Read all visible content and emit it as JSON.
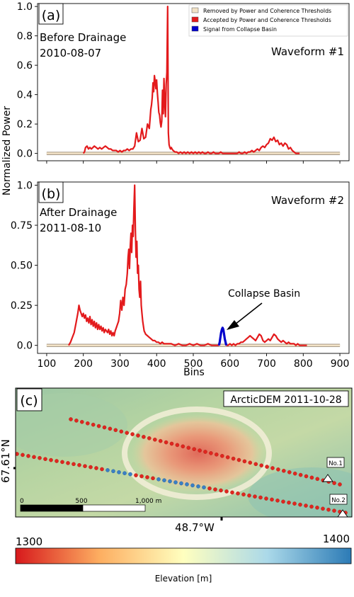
{
  "figure": {
    "ylabel": "Normalized Power",
    "xlabel": "Bins"
  },
  "chart_data": [
    {
      "panel": "(a)",
      "type": "line",
      "title_lines": [
        "Before Drainage",
        "2010-08-07"
      ],
      "waveform_label": "Waveform #1",
      "xlim": [
        75,
        925
      ],
      "ylim": [
        -0.05,
        1.02
      ],
      "yticks": [
        "0.0",
        "0.2",
        "0.4",
        "0.6",
        "0.8",
        "1.0"
      ],
      "ytick_values": [
        0,
        0.2,
        0.4,
        0.6,
        0.8,
        1.0
      ],
      "legend": {
        "placement": "top-right",
        "entries": [
          {
            "label": "Removed by Power and Coherence Thresholds",
            "color": "#f2e2c6"
          },
          {
            "label": "Accepted by Power and Coherence Thresholds",
            "color": "#e31a1c"
          },
          {
            "label": "Signal from Collapse Basin",
            "color": "#0000cc"
          }
        ]
      },
      "series": [
        {
          "role": "removed",
          "color": "#f2e2c6",
          "x": [
            100,
            200,
            430,
            570,
            790,
            900
          ],
          "y": [
            0,
            0,
            0,
            0,
            0,
            0
          ]
        },
        {
          "role": "accepted",
          "color": "#e31a1c",
          "x": [
            200,
            203,
            206,
            210,
            214,
            218,
            222,
            226,
            230,
            235,
            240,
            245,
            250,
            255,
            260,
            265,
            270,
            275,
            280,
            285,
            290,
            295,
            300,
            305,
            310,
            315,
            320,
            325,
            330,
            335,
            340,
            345,
            350,
            355,
            360,
            365,
            370,
            375,
            380,
            384,
            386,
            388,
            390,
            392,
            394,
            396,
            398,
            400,
            402,
            404,
            406,
            408,
            410,
            412,
            414,
            416,
            418,
            420,
            422,
            424,
            426,
            428,
            430,
            432,
            434,
            436,
            438,
            440,
            442,
            445,
            450,
            455,
            460,
            465,
            470,
            475,
            480,
            485,
            490,
            495,
            500,
            505,
            510,
            515,
            520,
            525,
            530,
            535,
            540,
            545,
            550,
            555,
            560,
            565,
            570,
            575,
            580,
            585,
            590,
            595,
            600,
            605,
            610,
            615,
            620,
            625,
            630,
            635,
            640,
            645,
            650,
            655,
            660,
            665,
            670,
            675,
            680,
            685,
            690,
            695,
            700,
            705,
            710,
            715,
            720,
            725,
            730,
            735,
            740,
            745,
            750,
            755,
            760,
            765,
            770,
            775,
            780,
            785,
            790
          ],
          "y": [
            0.0,
            0.01,
            0.04,
            0.05,
            0.03,
            0.04,
            0.03,
            0.04,
            0.05,
            0.04,
            0.03,
            0.04,
            0.03,
            0.04,
            0.05,
            0.04,
            0.03,
            0.03,
            0.02,
            0.02,
            0.02,
            0.01,
            0.02,
            0.01,
            0.02,
            0.02,
            0.03,
            0.02,
            0.03,
            0.03,
            0.05,
            0.14,
            0.08,
            0.09,
            0.17,
            0.1,
            0.11,
            0.2,
            0.17,
            0.3,
            0.33,
            0.38,
            0.48,
            0.42,
            0.53,
            0.49,
            0.44,
            0.5,
            0.41,
            0.35,
            0.28,
            0.26,
            0.21,
            0.18,
            0.22,
            0.43,
            0.27,
            0.51,
            0.35,
            0.25,
            0.47,
            0.55,
            1.0,
            0.14,
            0.06,
            0.04,
            0.03,
            0.04,
            0.03,
            0.02,
            0.01,
            0.01,
            0.0,
            0.01,
            0.0,
            0.01,
            0.0,
            0.01,
            0.0,
            0.01,
            0.0,
            0.01,
            0.0,
            0.01,
            0.0,
            0.01,
            0.0,
            0.0,
            0.01,
            0.0,
            0.0,
            0.01,
            0.0,
            0.0,
            0.0,
            0.01,
            0.0,
            0.0,
            0.0,
            0.0,
            0.0,
            0.0,
            0.0,
            0.0,
            0.0,
            0.01,
            0.0,
            0.0,
            0.01,
            0.0,
            0.01,
            0.01,
            0.02,
            0.01,
            0.02,
            0.03,
            0.02,
            0.04,
            0.05,
            0.04,
            0.06,
            0.07,
            0.1,
            0.09,
            0.11,
            0.08,
            0.09,
            0.06,
            0.07,
            0.05,
            0.07,
            0.06,
            0.03,
            0.04,
            0.02,
            0.01,
            0.0,
            0.0,
            0.0
          ]
        }
      ]
    },
    {
      "panel": "(b)",
      "type": "line",
      "title_lines": [
        "After Drainage",
        "2011-08-10"
      ],
      "waveform_label": "Waveform #2",
      "annotation": "Collapse Basin",
      "xlim": [
        75,
        925
      ],
      "ylim": [
        -0.05,
        1.02
      ],
      "xticks": [
        "100",
        "200",
        "300",
        "400",
        "500",
        "600",
        "700",
        "800",
        "900"
      ],
      "xtick_values": [
        100,
        200,
        300,
        400,
        500,
        600,
        700,
        800,
        900
      ],
      "yticks": [
        "0.0",
        "0.25",
        "0.50",
        "0.75",
        "1.0"
      ],
      "ytick_values": [
        0,
        0.25,
        0.5,
        0.75,
        1.0
      ],
      "series": [
        {
          "role": "removed",
          "color": "#f2e2c6",
          "x": [
            100,
            160,
            460,
            570,
            810,
            900
          ],
          "y": [
            0,
            0,
            0,
            0,
            0,
            0
          ]
        },
        {
          "role": "accepted",
          "color": "#e31a1c",
          "x": [
            160,
            165,
            170,
            175,
            180,
            185,
            188,
            191,
            194,
            197,
            200,
            203,
            206,
            209,
            212,
            215,
            218,
            221,
            224,
            227,
            230,
            233,
            236,
            239,
            242,
            245,
            248,
            251,
            254,
            257,
            260,
            263,
            266,
            269,
            272,
            275,
            278,
            281,
            284,
            287,
            290,
            293,
            296,
            299,
            302,
            305,
            308,
            311,
            314,
            317,
            320,
            322,
            324,
            326,
            328,
            330,
            332,
            334,
            336,
            338,
            340,
            342,
            344,
            346,
            348,
            350,
            352,
            354,
            356,
            358,
            360,
            362,
            364,
            366,
            368,
            370,
            375,
            380,
            385,
            390,
            395,
            400,
            405,
            410,
            415,
            420,
            430,
            440,
            450,
            460,
            470,
            480,
            490,
            500,
            510,
            520,
            530,
            540,
            550,
            560,
            565,
            570
          ],
          "y": [
            0.0,
            0.02,
            0.05,
            0.08,
            0.14,
            0.2,
            0.25,
            0.22,
            0.2,
            0.18,
            0.2,
            0.17,
            0.19,
            0.15,
            0.17,
            0.14,
            0.18,
            0.13,
            0.16,
            0.12,
            0.15,
            0.11,
            0.14,
            0.1,
            0.13,
            0.1,
            0.12,
            0.09,
            0.11,
            0.08,
            0.1,
            0.09,
            0.08,
            0.1,
            0.07,
            0.09,
            0.06,
            0.08,
            0.06,
            0.09,
            0.11,
            0.13,
            0.15,
            0.2,
            0.28,
            0.22,
            0.3,
            0.25,
            0.35,
            0.38,
            0.45,
            0.55,
            0.6,
            0.48,
            0.62,
            0.7,
            0.58,
            0.75,
            0.68,
            0.85,
            1.0,
            0.72,
            0.55,
            0.65,
            0.45,
            0.5,
            0.35,
            0.3,
            0.4,
            0.25,
            0.2,
            0.15,
            0.12,
            0.09,
            0.08,
            0.07,
            0.06,
            0.05,
            0.04,
            0.03,
            0.03,
            0.02,
            0.02,
            0.01,
            0.02,
            0.01,
            0.01,
            0.01,
            0.0,
            0.01,
            0.0,
            0.0,
            0.01,
            0.0,
            0.01,
            0.0,
            0.0,
            0.01,
            0.0,
            0.0,
            0.0,
            0.0
          ]
        },
        {
          "role": "accepted",
          "color": "#e31a1c",
          "x": [
            590,
            595,
            600,
            605,
            610,
            615,
            620,
            625,
            630,
            635,
            640,
            645,
            650,
            655,
            660,
            665,
            670,
            675,
            680,
            685,
            690,
            695,
            700,
            705,
            710,
            715,
            720,
            725,
            730,
            735,
            740,
            745,
            750,
            755,
            760,
            765,
            770,
            775,
            780,
            785,
            790,
            795,
            800,
            805,
            810
          ],
          "y": [
            0.0,
            0.0,
            0.01,
            0.0,
            0.01,
            0.0,
            0.01,
            0.01,
            0.02,
            0.02,
            0.03,
            0.04,
            0.05,
            0.06,
            0.05,
            0.04,
            0.03,
            0.05,
            0.07,
            0.06,
            0.03,
            0.02,
            0.03,
            0.04,
            0.03,
            0.05,
            0.07,
            0.06,
            0.04,
            0.03,
            0.02,
            0.03,
            0.02,
            0.01,
            0.02,
            0.01,
            0.01,
            0.01,
            0.0,
            0.01,
            0.0,
            0.0,
            0.0,
            0.0,
            0.0
          ]
        },
        {
          "role": "collapse_basin",
          "color": "#0000cc",
          "x": [
            570,
            572,
            574,
            576,
            578,
            580,
            582,
            584,
            586,
            588,
            590
          ],
          "y": [
            0.0,
            0.02,
            0.05,
            0.08,
            0.1,
            0.11,
            0.1,
            0.07,
            0.04,
            0.02,
            0.0
          ]
        }
      ]
    }
  ],
  "map": {
    "panel": "(c)",
    "title": "ArcticDEM 2011-10-28",
    "lat_label": "67.61°N",
    "lon_label": "48.7°W",
    "scale_labels": [
      "0",
      "500",
      "1,000 m"
    ],
    "markers": [
      "No.1",
      "No.2"
    ],
    "colorbar": {
      "min": "1300",
      "max": "1400",
      "label": "Elevation [m]",
      "colors": [
        "#d7191c",
        "#fdae61",
        "#ffffbf",
        "#abd9e9",
        "#2c7bb6"
      ]
    }
  }
}
